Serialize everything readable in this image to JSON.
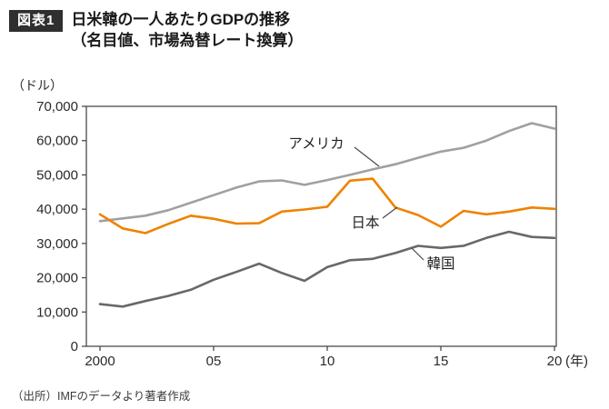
{
  "header": {
    "badge": "図表1",
    "title": "日米韓の一人あたりGDPの推移",
    "subtitle": "（名目値、市場為替レート換算）"
  },
  "footer": {
    "source": "（出所）IMFのデータより著者作成"
  },
  "chart_data": {
    "type": "line",
    "title": "日米韓の一人あたりGDPの推移（名目値、市場為替レート換算）",
    "ylabel": "（ドル）",
    "xlabel": "年",
    "grid": false,
    "legend_position": "inline-annotations",
    "x_range": [
      2000,
      2020
    ],
    "ylim": [
      0,
      70000
    ],
    "x": [
      2000,
      2001,
      2002,
      2003,
      2004,
      2005,
      2006,
      2007,
      2008,
      2009,
      2010,
      2011,
      2012,
      2013,
      2014,
      2015,
      2016,
      2017,
      2018,
      2019,
      2020
    ],
    "y_ticks": [
      {
        "value": 0,
        "label": "0"
      },
      {
        "value": 10000,
        "label": "10,000"
      },
      {
        "value": 20000,
        "label": "20,000"
      },
      {
        "value": 30000,
        "label": "30,000"
      },
      {
        "value": 40000,
        "label": "40,000"
      },
      {
        "value": 50000,
        "label": "50,000"
      },
      {
        "value": 60000,
        "label": "60,000"
      },
      {
        "value": 70000,
        "label": "70,000"
      }
    ],
    "x_ticks": [
      {
        "value": 2000,
        "label": "2000"
      },
      {
        "value": 2005,
        "label": "05"
      },
      {
        "value": 2010,
        "label": "10"
      },
      {
        "value": 2015,
        "label": "15"
      },
      {
        "value": 2020,
        "label": "20"
      }
    ],
    "x_axis_suffix": "(年)",
    "axis_color": "#4a4a4a",
    "series": [
      {
        "id": "usa",
        "label": "アメリカ",
        "color": "#a0a0a0",
        "values": [
          36500,
          37300,
          38100,
          39700,
          41900,
          44100,
          46300,
          48100,
          48400,
          47100,
          48500,
          50000,
          51600,
          53100,
          55000,
          56800,
          57900,
          60000,
          62800,
          65100,
          63500
        ]
      },
      {
        "id": "japan",
        "label": "日本",
        "color": "#ef8200",
        "values": [
          38500,
          34400,
          33000,
          35700,
          38100,
          37200,
          35800,
          35900,
          39300,
          39900,
          40700,
          48300,
          48900,
          40500,
          38300,
          34900,
          39500,
          38500,
          39300,
          40500,
          40100
        ]
      },
      {
        "id": "korea",
        "label": "韓国",
        "color": "#686868",
        "values": [
          12300,
          11600,
          13200,
          14700,
          16500,
          19400,
          21700,
          24100,
          21400,
          19100,
          23100,
          25100,
          25500,
          27200,
          29300,
          28700,
          29300,
          31600,
          33400,
          31900,
          31600
        ]
      }
    ]
  }
}
